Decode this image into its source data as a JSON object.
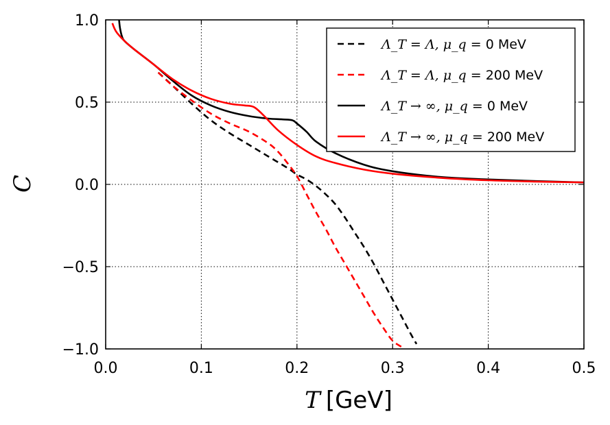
{
  "chart_data": {
    "type": "line",
    "xlabel": {
      "symbol": "T",
      "unit": "[GeV]"
    },
    "ylabel": "C",
    "xlim": [
      0.0,
      0.5
    ],
    "ylim": [
      -1.0,
      1.0
    ],
    "grid": true,
    "legend_position": "top-right",
    "x_ticks": [
      0.0,
      0.1,
      0.2,
      0.3,
      0.4,
      0.5
    ],
    "x_tick_labels": [
      "0.0",
      "0.1",
      "0.2",
      "0.3",
      "0.4",
      "0.5"
    ],
    "y_ticks": [
      1.0,
      0.5,
      0.0,
      -0.5,
      -1.0
    ],
    "y_tick_labels": [
      "1.0",
      "0.5",
      "0.0",
      "−0.5",
      "−1.0"
    ],
    "series": [
      {
        "name": "ΛT = Λ, μq = 0 MeV",
        "legend_math": "Λ_T = Λ, μ_q = ",
        "legend_value": " 0 MeV",
        "color": "#000000",
        "dash": "dashed",
        "x": [
          0.055,
          0.07,
          0.09,
          0.11,
          0.13,
          0.15,
          0.17,
          0.19,
          0.2,
          0.21,
          0.22,
          0.23,
          0.24,
          0.25,
          0.26,
          0.27,
          0.28,
          0.29,
          0.3,
          0.31,
          0.32,
          0.325
        ],
        "y": [
          0.68,
          0.6,
          0.49,
          0.39,
          0.31,
          0.24,
          0.17,
          0.1,
          0.06,
          0.03,
          -0.01,
          -0.06,
          -0.12,
          -0.2,
          -0.29,
          -0.38,
          -0.48,
          -0.59,
          -0.7,
          -0.81,
          -0.92,
          -0.97
        ]
      },
      {
        "name": "ΛT = Λ, μq = 200 MeV",
        "legend_math": "Λ_T = Λ, μ_q = ",
        "legend_value": " 200 MeV",
        "color": "#ff0000",
        "dash": "dashed",
        "x": [
          0.055,
          0.07,
          0.09,
          0.11,
          0.13,
          0.15,
          0.17,
          0.18,
          0.19,
          0.2,
          0.21,
          0.22,
          0.23,
          0.24,
          0.25,
          0.26,
          0.27,
          0.28,
          0.29,
          0.3,
          0.31
        ],
        "y": [
          0.68,
          0.6,
          0.51,
          0.43,
          0.37,
          0.32,
          0.25,
          0.2,
          0.13,
          0.05,
          -0.06,
          -0.17,
          -0.27,
          -0.38,
          -0.48,
          -0.58,
          -0.68,
          -0.78,
          -0.87,
          -0.95,
          -0.99
        ]
      },
      {
        "name": "ΛT → ∞, μq = 0 MeV",
        "legend_math": "Λ_T → ∞, μ_q = ",
        "legend_value": " 0 MeV",
        "color": "#000000",
        "dash": "solid",
        "x": [
          0.014,
          0.015,
          0.017,
          0.02,
          0.03,
          0.05,
          0.07,
          0.09,
          0.11,
          0.13,
          0.15,
          0.17,
          0.185,
          0.195,
          0.2,
          0.21,
          0.22,
          0.24,
          0.27,
          0.3,
          0.35,
          0.4,
          0.45,
          0.5
        ],
        "y": [
          1.0,
          0.95,
          0.9,
          0.87,
          0.82,
          0.73,
          0.63,
          0.54,
          0.48,
          0.44,
          0.415,
          0.4,
          0.395,
          0.39,
          0.37,
          0.32,
          0.26,
          0.19,
          0.12,
          0.08,
          0.045,
          0.03,
          0.02,
          0.012
        ]
      },
      {
        "name": "ΛT → ∞, μq = 200 MeV",
        "legend_math": "Λ_T → ∞, μ_q = ",
        "legend_value": " 200 MeV",
        "color": "#ff0000",
        "dash": "solid",
        "x": [
          0.007,
          0.009,
          0.012,
          0.02,
          0.03,
          0.05,
          0.07,
          0.09,
          0.11,
          0.13,
          0.145,
          0.155,
          0.165,
          0.18,
          0.2,
          0.22,
          0.24,
          0.27,
          0.3,
          0.35,
          0.4,
          0.45,
          0.5
        ],
        "y": [
          0.98,
          0.95,
          0.92,
          0.87,
          0.82,
          0.73,
          0.64,
          0.57,
          0.52,
          0.49,
          0.48,
          0.47,
          0.42,
          0.33,
          0.24,
          0.17,
          0.13,
          0.09,
          0.065,
          0.04,
          0.025,
          0.017,
          0.012
        ]
      }
    ]
  }
}
